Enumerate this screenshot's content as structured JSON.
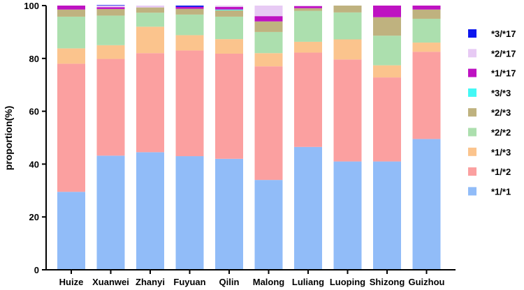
{
  "chart_data": {
    "type": "bar",
    "stacked": true,
    "title": "",
    "xlabel": "",
    "ylabel": "proportion(%)",
    "ylim": [
      0,
      100
    ],
    "yticks": [
      0,
      20,
      40,
      60,
      80,
      100
    ],
    "categories": [
      "Huize",
      "Xuanwei",
      "Zhanyi",
      "Fuyuan",
      "Qilin",
      "Malong",
      "Luliang",
      "Luoping",
      "Shizong",
      "Guizhou"
    ],
    "series": [
      {
        "name": "*1/*1",
        "color": "#91BCF8",
        "values": [
          29.5,
          43.2,
          44.5,
          43.0,
          42.0,
          34.0,
          46.5,
          41.0,
          41.0,
          49.5
        ]
      },
      {
        "name": "*1/*2",
        "color": "#FBA0A0",
        "values": [
          48.5,
          36.6,
          37.5,
          40.0,
          39.8,
          43.0,
          35.7,
          38.6,
          31.8,
          33.0
        ]
      },
      {
        "name": "*1/*3",
        "color": "#FBC48D",
        "values": [
          5.8,
          5.2,
          10.0,
          5.8,
          5.5,
          5.0,
          4.1,
          7.6,
          4.6,
          3.5
        ]
      },
      {
        "name": "*2/*2",
        "color": "#ACDFAE",
        "values": [
          12.0,
          11.2,
          5.3,
          7.8,
          8.5,
          8.0,
          11.7,
          10.2,
          11.2,
          9.0
        ]
      },
      {
        "name": "*2/*3",
        "color": "#BFB27F",
        "values": [
          2.7,
          2.5,
          2.0,
          2.2,
          2.4,
          4.0,
          1.0,
          2.6,
          7.0,
          3.5
        ]
      },
      {
        "name": "*3/*3",
        "color": "#43F8F5",
        "values": [
          0,
          0,
          0,
          0,
          0.3,
          0,
          0,
          0,
          0,
          0
        ]
      },
      {
        "name": "*1/*17",
        "color": "#BE12C2",
        "values": [
          1.5,
          0.7,
          0,
          0.7,
          1.0,
          2.0,
          0.8,
          0,
          4.4,
          1.5
        ]
      },
      {
        "name": "*2/*17",
        "color": "#E7CAF4",
        "values": [
          0,
          0.6,
          0.7,
          0,
          0.5,
          4.0,
          0.2,
          0,
          0,
          0
        ]
      },
      {
        "name": "*3/*17",
        "color": "#0D16EE",
        "values": [
          0,
          0.2,
          0,
          0.5,
          0,
          0,
          0,
          0,
          0,
          0
        ]
      }
    ],
    "legend_order": [
      "*3/*17",
      "*2/*17",
      "*1/*17",
      "*3/*3",
      "*2/*3",
      "*2/*2",
      "*1/*3",
      "*1/*2",
      "*1/*1"
    ],
    "legend_position": "right",
    "grid": false
  }
}
